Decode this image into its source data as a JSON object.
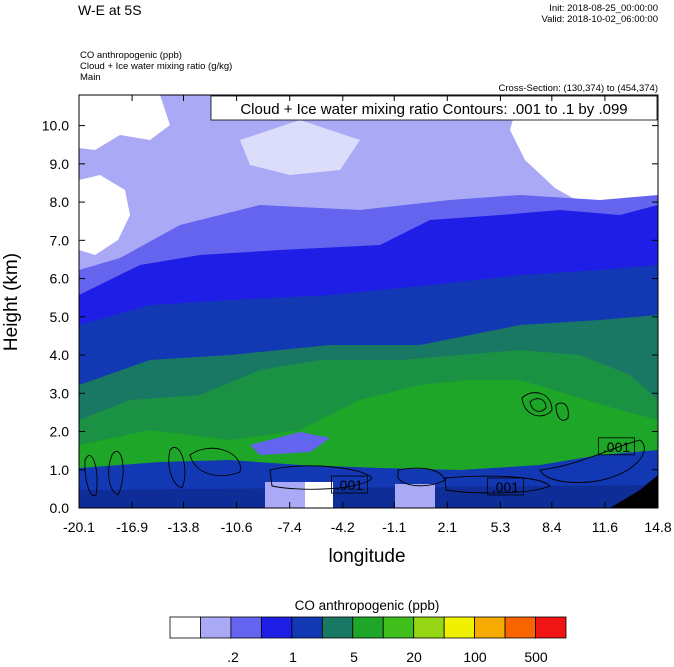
{
  "header": {
    "title": "W-E at 5S",
    "init": "Init: 2018-08-25_00:00:00",
    "valid": "Valid: 2018-10-02_06:00:00",
    "field_lines": [
      "CO anthropogenic   (ppb)",
      "Cloud + Ice water mixing ratio   (g/kg)",
      "Main"
    ],
    "cross_section": "Cross-Section: (130,374) to (454,374)",
    "contour_info": "Cloud + Ice water mixing ratio Contours: .001 to .1 by .099"
  },
  "chart_data": {
    "type": "heatmap",
    "xlabel": "longitude",
    "ylabel": "Height (km)",
    "xlim": [
      -20.1,
      14.8
    ],
    "ylim": [
      0.0,
      10.8
    ],
    "x_ticks": [
      "-20.1",
      "-16.9",
      "-13.8",
      "-10.6",
      "-7.4",
      "-4.2",
      "-1.1",
      "2.1",
      "5.3",
      "8.4",
      "11.6",
      "14.8"
    ],
    "y_ticks": [
      "0.0",
      "1.0",
      "2.0",
      "3.0",
      "4.0",
      "5.0",
      "6.0",
      "7.0",
      "8.0",
      "9.0",
      "10.0"
    ],
    "contour_labels": [
      {
        "text": ".001",
        "x": -3.8,
        "y": 0.6
      },
      {
        "text": ".001",
        "x": 5.6,
        "y": 0.55
      },
      {
        "text": ".001",
        "x": 12.3,
        "y": 1.6
      }
    ],
    "legend": {
      "title": "CO anthropogenic  (ppb)",
      "tick_labels": [
        ".2",
        "1",
        "5",
        "20",
        "100",
        "500"
      ],
      "colors": [
        "#ffffff",
        "#a9a9f5",
        "#6464ef",
        "#1e1ee6",
        "#1238b4",
        "#197864",
        "#1ea628",
        "#40be1c",
        "#96d614",
        "#f0f000",
        "#f7aa00",
        "#f76400",
        "#f01414"
      ]
    },
    "grid": false
  },
  "colors": {
    "band_ground": "#0f2d96",
    "band_low": "#1ea628",
    "band_mid": "#197864",
    "band_blue": "#1238b4",
    "band_medium_blue": "#1e1ee6",
    "band_light": "#6464ef",
    "band_pale": "#a9a9f5"
  }
}
